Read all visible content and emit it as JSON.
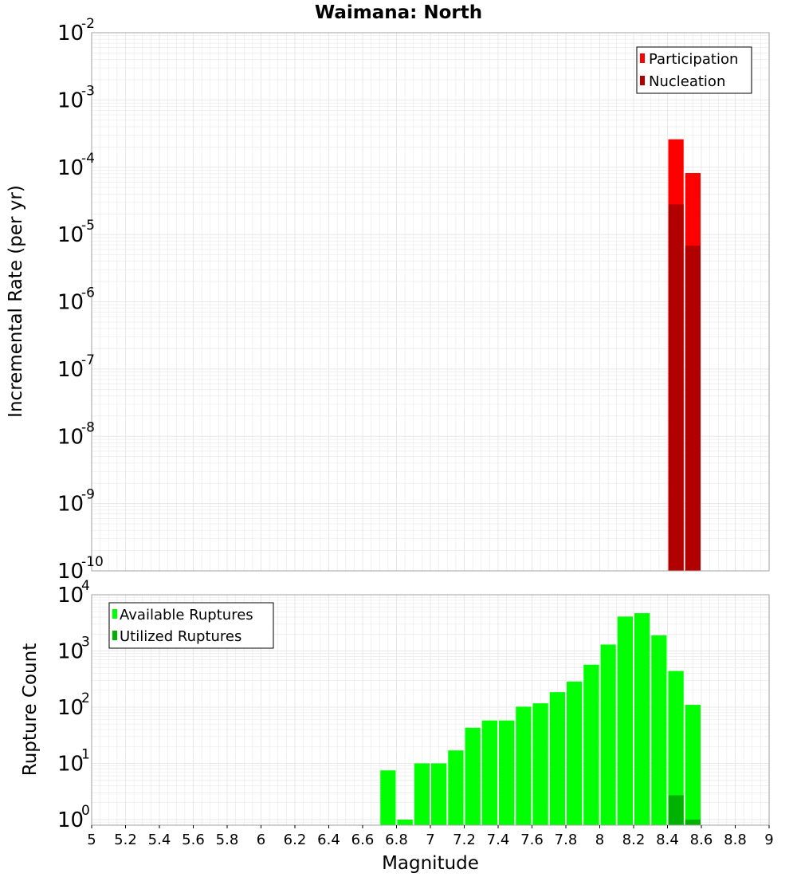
{
  "title": "Waimana: North",
  "xlabel": "Magnitude",
  "x_ticks": [
    "5",
    "5.2",
    "5.4",
    "5.6",
    "5.8",
    "6",
    "6.2",
    "6.4",
    "6.6",
    "6.8",
    "7",
    "7.2",
    "7.4",
    "7.6",
    "7.8",
    "8",
    "8.2",
    "8.4",
    "8.6",
    "8.8",
    "9"
  ],
  "colors": {
    "participation": "#ff0000",
    "nucleation": "#b20000",
    "available": "#00ff00",
    "utilized": "#00b200",
    "grid": "#e8e8e8",
    "frame": "#a0a0a0"
  },
  "chart_data": [
    {
      "type": "bar",
      "title": "Waimana: North",
      "ylabel": "Incremental Rate (per yr)",
      "xlabel": "",
      "yscale": "log",
      "xlim": [
        5,
        9
      ],
      "ylim_exp": [
        -10,
        -2
      ],
      "y_ticks": [
        {
          "base": "10",
          "exp": "-2"
        },
        {
          "base": "10",
          "exp": "-3"
        },
        {
          "base": "10",
          "exp": "-4"
        },
        {
          "base": "10",
          "exp": "-5"
        },
        {
          "base": "10",
          "exp": "-6"
        },
        {
          "base": "10",
          "exp": "-7"
        },
        {
          "base": "10",
          "exp": "-8"
        },
        {
          "base": "10",
          "exp": "-9"
        },
        {
          "base": "10",
          "exp": "-10"
        }
      ],
      "legend": [
        "Participation",
        "Nucleation"
      ],
      "legend_position": "top-right",
      "bin_width": 0.1,
      "series": [
        {
          "name": "Participation",
          "x": [
            8.45,
            8.55
          ],
          "values": [
            0.00026,
            8.2e-05
          ]
        },
        {
          "name": "Nucleation",
          "x": [
            8.45,
            8.55
          ],
          "values": [
            2.8e-05,
            6.8e-06
          ]
        }
      ]
    },
    {
      "type": "bar",
      "title": "",
      "ylabel": "Rupture Count",
      "xlabel": "Magnitude",
      "yscale": "log",
      "xlim": [
        5,
        9
      ],
      "ylim_exp": [
        -0.1,
        4
      ],
      "y_ticks": [
        {
          "base": "10",
          "exp": "4"
        },
        {
          "base": "10",
          "exp": "3"
        },
        {
          "base": "10",
          "exp": "2"
        },
        {
          "base": "10",
          "exp": "1"
        },
        {
          "base": "10",
          "exp": "0"
        }
      ],
      "legend": [
        "Available Ruptures",
        "Utilized Ruptures"
      ],
      "legend_position": "top-left",
      "bin_width": 0.1,
      "series": [
        {
          "name": "Available Ruptures",
          "x": [
            6.75,
            6.85,
            6.95,
            7.05,
            7.15,
            7.25,
            7.35,
            7.45,
            7.55,
            7.65,
            7.75,
            7.85,
            7.95,
            8.05,
            8.15,
            8.25,
            8.35,
            8.45,
            8.55
          ],
          "values": [
            7.5,
            1,
            10,
            10,
            17,
            43,
            58,
            58,
            102,
            117,
            185,
            285,
            570,
            1300,
            4100,
            4700,
            1900,
            440,
            110
          ]
        },
        {
          "name": "Utilized Ruptures",
          "x": [
            8.45,
            8.55
          ],
          "values": [
            2.7,
            1
          ]
        }
      ]
    }
  ]
}
